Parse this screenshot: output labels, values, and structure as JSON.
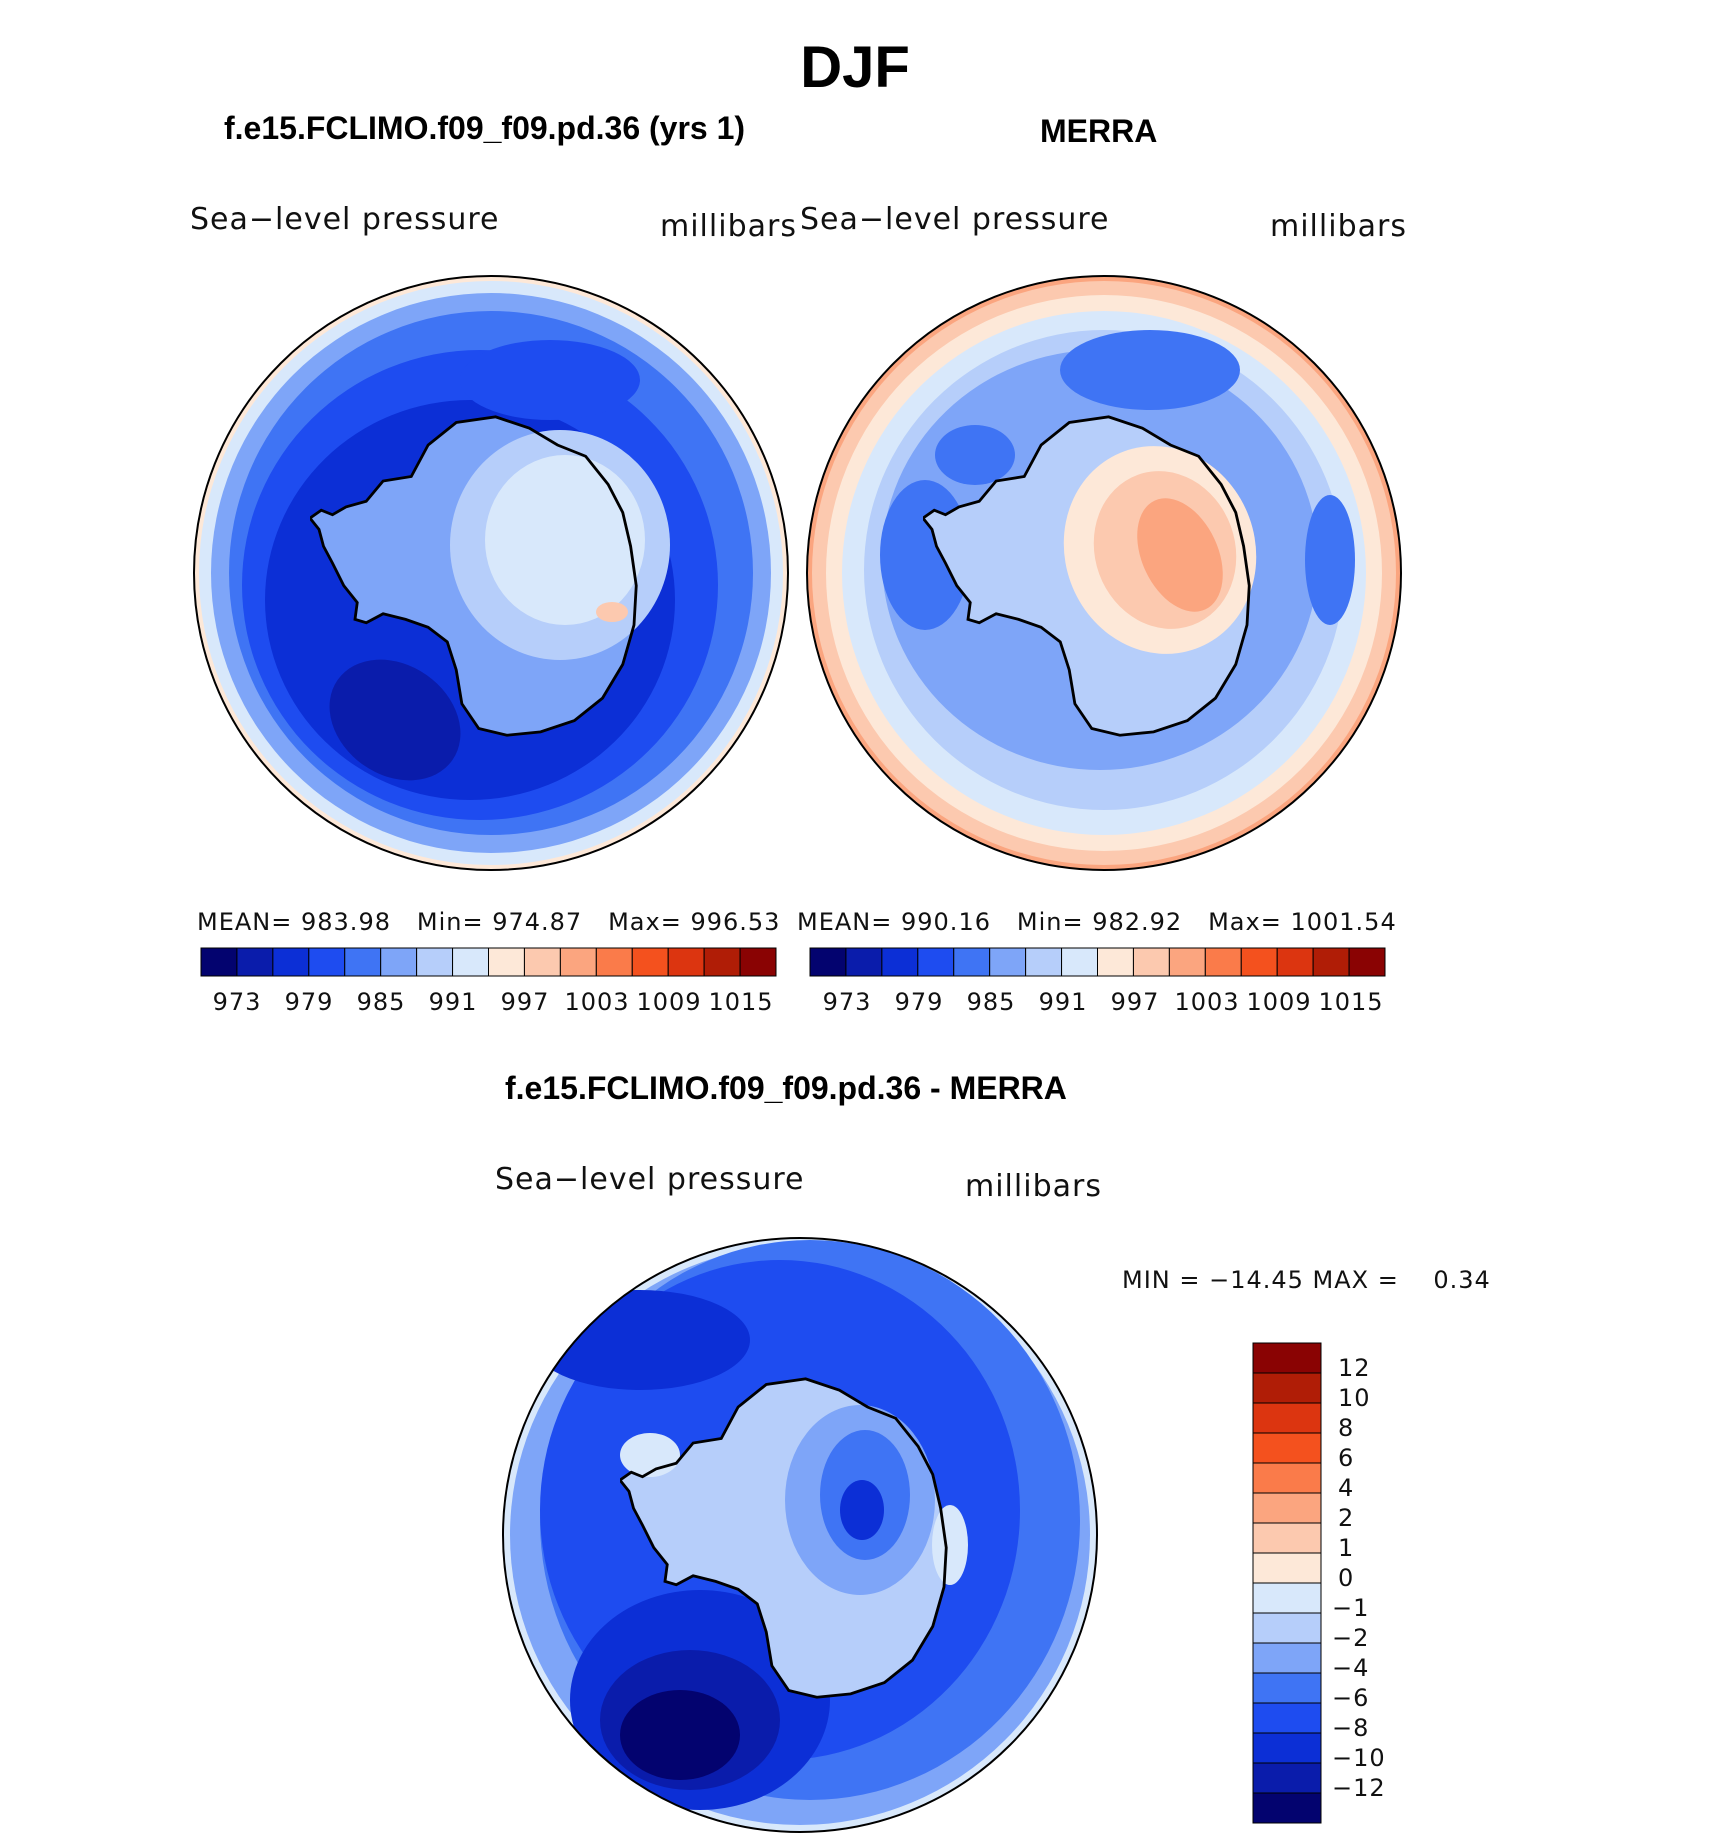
{
  "title": "DJF",
  "panels": [
    {
      "title": "f.e15.FCLIMO.f09_f09.pd.36 (yrs 1)",
      "variable": "Sea−level pressure",
      "units": "millibars",
      "stats": {
        "mean_label": "MEAN=",
        "mean": "983.98",
        "min_label": "Min=",
        "min": "974.87",
        "max_label": "Max=",
        "max": "996.53"
      },
      "colorbar_ticks": [
        "973",
        "979",
        "985",
        "991",
        "997",
        "1003",
        "1009",
        "1015"
      ]
    },
    {
      "title": "MERRA",
      "variable": "Sea−level pressure",
      "units": "millibars",
      "stats": {
        "mean_label": "MEAN=",
        "mean": "990.16",
        "min_label": "Min=",
        "min": "982.92",
        "max_label": "Max=",
        "max": "1001.54"
      },
      "colorbar_ticks": [
        "973",
        "979",
        "985",
        "991",
        "997",
        "1003",
        "1009",
        "1015"
      ]
    },
    {
      "title": "f.e15.FCLIMO.f09_f09.pd.36 - MERRA",
      "variable": "Sea−level pressure",
      "units": "millibars",
      "minmax": "MIN = −14.45 MAX =    0.34",
      "colorbar_ticks": [
        "12",
        "10",
        "8",
        "6",
        "4",
        "2",
        "1",
        "0",
        "−1",
        "−2",
        "−4",
        "−6",
        "−8",
        "−10",
        "−12"
      ]
    }
  ],
  "colors": {
    "palette": [
      "#03036f",
      "#0a1cab",
      "#0c2fd6",
      "#1e4cf0",
      "#3f74f4",
      "#7ea5f8",
      "#b6cefa",
      "#d8e8fb",
      "#fde8d8",
      "#fcc9af",
      "#fba57f",
      "#fa7b4a",
      "#f4511e",
      "#dc3510",
      "#b01d06",
      "#8a0303"
    ],
    "diff_palette_top_to_bottom": [
      "#8a0303",
      "#b01d06",
      "#dc3510",
      "#f4511e",
      "#fa7b4a",
      "#fba57f",
      "#fcc9af",
      "#fde8d8",
      "#d8e8fb",
      "#b6cefa",
      "#7ea5f8",
      "#3f74f4",
      "#1e4cf0",
      "#0c2fd6",
      "#0a1cab",
      "#03036f"
    ]
  }
}
